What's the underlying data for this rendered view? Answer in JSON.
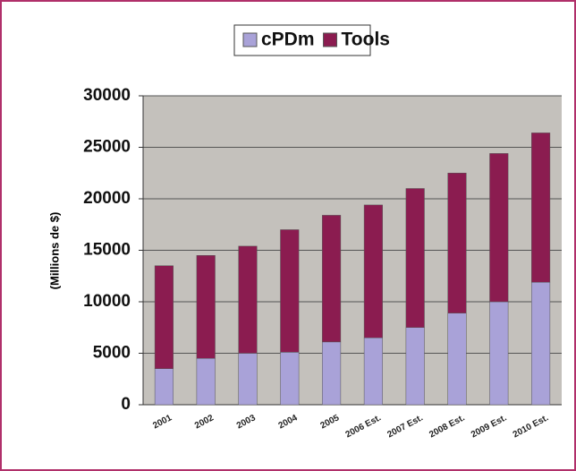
{
  "chart_data": {
    "type": "stacked_bar",
    "categories": [
      "2001",
      "2002",
      "2003",
      "2004",
      "2005",
      "2006 Est.",
      "2007 Est.",
      "2008 Est.",
      "2009 Est.",
      "2010 Est."
    ],
    "series": [
      {
        "name": "cPDm",
        "color": "#a9a2d8",
        "values": [
          3500,
          4500,
          5000,
          5100,
          6100,
          6500,
          7500,
          8900,
          10000,
          11900
        ]
      },
      {
        "name": "Tools",
        "color": "#8b1c50",
        "values": [
          10000,
          10000,
          10400,
          11900,
          12300,
          12900,
          13500,
          13600,
          14400,
          14500
        ]
      }
    ],
    "y_label": "(Millions de $)",
    "ylim": [
      0,
      30000
    ],
    "yticks": [
      0,
      5000,
      10000,
      15000,
      20000,
      25000,
      30000
    ],
    "grid": true,
    "legend": "top"
  }
}
